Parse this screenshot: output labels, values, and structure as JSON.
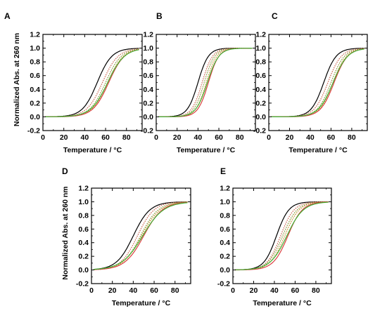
{
  "chart_data": [
    {
      "type": "line",
      "panel_label": "A",
      "xlabel": "Temperature / °C",
      "ylabel": "Normalized Abs. at 260 nm",
      "xlim": [
        0,
        95
      ],
      "ylim": [
        -0.2,
        1.2
      ],
      "xticks": [
        0,
        20,
        40,
        60,
        80
      ],
      "yticks": [
        -0.2,
        0.0,
        0.2,
        0.4,
        0.6,
        0.8,
        1.0,
        1.2
      ],
      "grid": false,
      "series": [
        {
          "color": "#000000",
          "style": "solid",
          "tm": 52,
          "width": 7
        },
        {
          "color": "#cc6a55",
          "style": "dotted",
          "tm": 57,
          "width": 7.5
        },
        {
          "color": "#8a9a3a",
          "style": "dotted",
          "tm": 60,
          "width": 7.5
        },
        {
          "color": "#c7922e",
          "style": "dotted",
          "tm": 62,
          "width": 7.5
        },
        {
          "color": "#d94040",
          "style": "solid",
          "tm": 63,
          "width": 7.5
        },
        {
          "color": "#43b035",
          "style": "solid",
          "tm": 62,
          "width": 8
        }
      ]
    },
    {
      "type": "line",
      "panel_label": "B",
      "xlabel": "Temperature / °C",
      "ylabel": "",
      "xlim": [
        0,
        95
      ],
      "ylim": [
        -0.2,
        1.2
      ],
      "xticks": [
        0,
        20,
        40,
        60,
        80
      ],
      "yticks": [
        -0.2,
        0.0,
        0.2,
        0.4,
        0.6,
        0.8,
        1.0,
        1.2
      ],
      "grid": false,
      "series": [
        {
          "color": "#000000",
          "style": "solid",
          "tm": 40,
          "width": 5
        },
        {
          "color": "#cc6a55",
          "style": "dotted",
          "tm": 44,
          "width": 5
        },
        {
          "color": "#8a9a3a",
          "style": "dotted",
          "tm": 46,
          "width": 5
        },
        {
          "color": "#c7922e",
          "style": "dotted",
          "tm": 48,
          "width": 5
        },
        {
          "color": "#d94040",
          "style": "solid",
          "tm": 50,
          "width": 5
        },
        {
          "color": "#43b035",
          "style": "solid",
          "tm": 49,
          "width": 5.5
        }
      ]
    },
    {
      "type": "line",
      "panel_label": "C",
      "xlabel": "Temperature / °C",
      "ylabel": "",
      "xlim": [
        0,
        95
      ],
      "ylim": [
        -0.2,
        1.2
      ],
      "xticks": [
        0,
        20,
        40,
        60,
        80
      ],
      "yticks": [
        -0.2,
        0.0,
        0.2,
        0.4,
        0.6,
        0.8,
        1.0,
        1.2
      ],
      "grid": false,
      "series": [
        {
          "color": "#000000",
          "style": "solid",
          "tm": 53,
          "width": 6
        },
        {
          "color": "#cc6a55",
          "style": "dotted",
          "tm": 57,
          "width": 6.5
        },
        {
          "color": "#8a9a3a",
          "style": "dotted",
          "tm": 60,
          "width": 6.5
        },
        {
          "color": "#c7922e",
          "style": "dotted",
          "tm": 62,
          "width": 6.5
        },
        {
          "color": "#d94040",
          "style": "solid",
          "tm": 63,
          "width": 6.5
        },
        {
          "color": "#43b035",
          "style": "solid",
          "tm": 62,
          "width": 7
        }
      ]
    },
    {
      "type": "line",
      "panel_label": "D",
      "xlabel": "Temperature / °C",
      "ylabel": "Normalized Abs. at 260 nm",
      "xlim": [
        0,
        95
      ],
      "ylim": [
        -0.2,
        1.2
      ],
      "xticks": [
        0,
        20,
        40,
        60,
        80
      ],
      "yticks": [
        -0.2,
        0.0,
        0.2,
        0.4,
        0.6,
        0.8,
        1.0,
        1.2
      ],
      "grid": false,
      "series": [
        {
          "color": "#000000",
          "style": "solid",
          "tm": 40,
          "width": 8
        },
        {
          "color": "#cc6a55",
          "style": "dotted",
          "tm": 44,
          "width": 8
        },
        {
          "color": "#8a9a3a",
          "style": "dotted",
          "tm": 47,
          "width": 8.5
        },
        {
          "color": "#c7922e",
          "style": "dotted",
          "tm": 48,
          "width": 9
        },
        {
          "color": "#d94040",
          "style": "solid",
          "tm": 50,
          "width": 9
        },
        {
          "color": "#43b035",
          "style": "solid",
          "tm": 49,
          "width": 10
        }
      ]
    },
    {
      "type": "line",
      "panel_label": "E",
      "xlabel": "Temperature / °C",
      "ylabel": "",
      "xlim": [
        0,
        95
      ],
      "ylim": [
        -0.2,
        1.2
      ],
      "xticks": [
        0,
        20,
        40,
        60,
        80
      ],
      "yticks": [
        -0.2,
        0.0,
        0.2,
        0.4,
        0.6,
        0.8,
        1.0,
        1.2
      ],
      "grid": false,
      "series": [
        {
          "color": "#000000",
          "style": "solid",
          "tm": 42,
          "width": 6
        },
        {
          "color": "#cc6a55",
          "style": "dotted",
          "tm": 46,
          "width": 6.5
        },
        {
          "color": "#8a9a3a",
          "style": "dotted",
          "tm": 48,
          "width": 7
        },
        {
          "color": "#c7922e",
          "style": "dotted",
          "tm": 50,
          "width": 7
        },
        {
          "color": "#d94040",
          "style": "solid",
          "tm": 53,
          "width": 7
        },
        {
          "color": "#43b035",
          "style": "solid",
          "tm": 52,
          "width": 8
        }
      ]
    }
  ]
}
